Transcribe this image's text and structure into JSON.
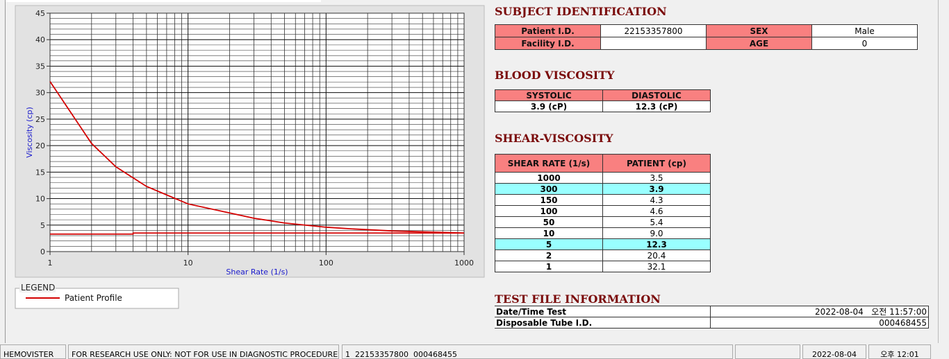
{
  "chart_data": {
    "type": "line",
    "xlabel": "Shear Rate (1/s)",
    "ylabel": "Viscosity (cp)",
    "xscale": "log",
    "xlim": [
      1,
      1000
    ],
    "xticks": [
      1,
      10,
      100,
      1000
    ],
    "xminor": [
      2,
      3,
      4,
      5,
      6,
      7,
      8,
      9,
      20,
      30,
      40,
      50,
      60,
      70,
      80,
      90,
      200,
      300,
      400,
      500,
      600,
      700,
      800,
      900
    ],
    "ylim": [
      0,
      45
    ],
    "yticks": [
      0,
      5,
      10,
      15,
      20,
      25,
      30,
      35,
      40,
      45
    ],
    "grid": true,
    "legend_title": "LEGEND",
    "series": [
      {
        "name": "Patient Profile",
        "color": "#d40000",
        "x": [
          1,
          2,
          3,
          5,
          10,
          20,
          30,
          50,
          100,
          150,
          300,
          1000
        ],
        "values": [
          32.1,
          20.4,
          16.0,
          12.3,
          9.0,
          7.3,
          6.3,
          5.4,
          4.6,
          4.3,
          3.9,
          3.5
        ]
      },
      {
        "color": "#d40000",
        "x": [
          1,
          4,
          4,
          1000
        ],
        "values": [
          3.3,
          3.3,
          3.5,
          3.5
        ]
      }
    ]
  },
  "subject_identification": {
    "title": "SUBJECT IDENTIFICATION",
    "fields": [
      {
        "label": "Patient I.D.",
        "value": "22153357800"
      },
      {
        "label": "SEX",
        "value": "Male"
      },
      {
        "label": "Facility I.D."
      },
      {
        "label": "AGE",
        "value": "0"
      }
    ]
  },
  "blood_viscosity": {
    "title": "BLOOD VISCOSITY",
    "headers": [
      "SYSTOLIC",
      "DIASTOLIC"
    ],
    "values": [
      "3.9 (cP)",
      "12.3 (cP)"
    ]
  },
  "shear_viscosity": {
    "title": "SHEAR-VISCOSITY",
    "headers": [
      "SHEAR RATE (1/s)",
      "PATIENT (cp)"
    ],
    "rows": [
      [
        "1000",
        "3.5"
      ],
      [
        "300",
        "3.9"
      ],
      [
        "150",
        "4.3"
      ],
      [
        "100",
        "4.6"
      ],
      [
        "50",
        "5.4"
      ],
      [
        "10",
        "9.0"
      ],
      [
        "5",
        "12.3"
      ],
      [
        "2",
        "20.4"
      ],
      [
        "1",
        "32.1"
      ]
    ],
    "highlight": [
      1,
      6
    ]
  },
  "test_file": {
    "title": "TEST FILE INFORMATION",
    "rows": [
      [
        "Date/Time Test",
        "2022-08-04   오전 11:57:00"
      ],
      [
        "Disposable Tube I.D.",
        "000468455"
      ]
    ]
  },
  "status_bar": [
    "HEMOVISTER",
    "FOR RESEARCH USE ONLY: NOT FOR USE IN DIAGNOSTIC PROCEDURES",
    "1  22153357800  000468455",
    null,
    "2022-08-04",
    "오후 12:01"
  ]
}
